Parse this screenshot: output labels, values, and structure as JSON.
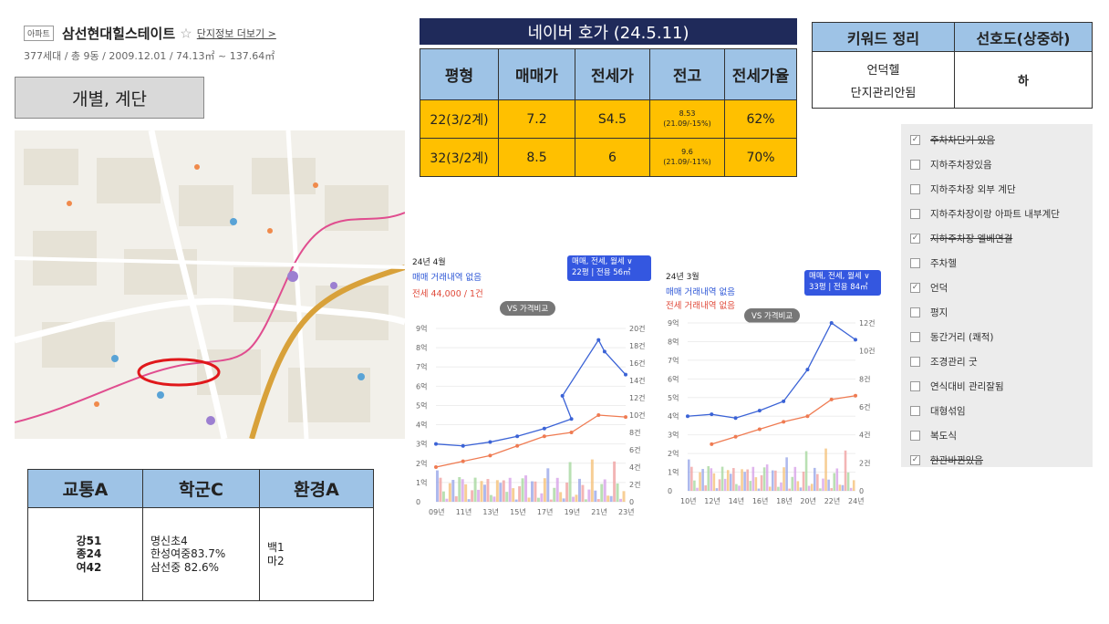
{
  "header": {
    "tag": "아파트",
    "name": "삼선현대힐스테이트",
    "star": "☆",
    "more": "단지정보 더보기 >",
    "sub": "377세대 / 총 9동 / 2009.12.01 / 74.13㎡ ~ 137.64㎡"
  },
  "category": "개별, 계단",
  "trio": {
    "headers": [
      "교통A",
      "학군C",
      "환경A"
    ],
    "col1": [
      "강51",
      "종24",
      "여42"
    ],
    "col2": [
      "명신초4",
      "한성여중83.7%",
      "삼선중 82.6%"
    ],
    "col3": [
      "백1",
      "마2"
    ]
  },
  "naver": {
    "title": "네이버 호가 (24.5.11)",
    "headers": [
      "평형",
      "매매가",
      "전세가",
      "전고",
      "전세가율"
    ],
    "rows": [
      {
        "type": "22(3/2계)",
        "sale": "7.2",
        "jeonse": "S4.5",
        "high": "8.53",
        "high_sub": "(21.09/-15%)",
        "rate": "62%"
      },
      {
        "type": "32(3/2계)",
        "sale": "8.5",
        "jeonse": "6",
        "high": "9.6",
        "high_sub": "(21.09/-11%)",
        "rate": "70%"
      }
    ]
  },
  "keyword": {
    "headers": [
      "키워드 정리",
      "선호도(상중하)"
    ],
    "items": [
      "언덕헬",
      "단지관리안됨"
    ],
    "pref": "하"
  },
  "checklist": [
    {
      "label": "주차차단기 있음",
      "checked": true,
      "struck": true
    },
    {
      "label": "지하주차장있음",
      "checked": false,
      "struck": false
    },
    {
      "label": "지하주차장 외부 계단",
      "checked": false,
      "struck": false
    },
    {
      "label": "지하주차장이랑 아파트 내부계단",
      "checked": false,
      "struck": false
    },
    {
      "label": "지하주차장 엘베연결",
      "checked": true,
      "struck": true
    },
    {
      "label": "주차헬",
      "checked": false,
      "struck": false
    },
    {
      "label": "언덕",
      "checked": true,
      "struck": false
    },
    {
      "label": "평지",
      "checked": false,
      "struck": false
    },
    {
      "label": "동간거리 (쾌적)",
      "checked": false,
      "struck": false
    },
    {
      "label": "조경관리 굿",
      "checked": false,
      "struck": false
    },
    {
      "label": "연식대비 관리잘됨",
      "checked": false,
      "struck": false
    },
    {
      "label": "대형섞임",
      "checked": false,
      "struck": false
    },
    {
      "label": "복도식",
      "checked": false,
      "struck": false
    },
    {
      "label": "한관바뀐있음",
      "checked": true,
      "struck": true
    }
  ],
  "chart_left": {
    "month": "24년 4월",
    "line1": "매매 거래내역 없음",
    "line2": "전세 44,000 / 1건",
    "btn1": "매매, 전세, 월세 ∨",
    "btn2": "22평 | 전용 56㎡",
    "vs": "VS 가격비교",
    "yleft": [
      "9억",
      "8억",
      "7억",
      "6억",
      "5억",
      "4억",
      "3억",
      "2억",
      "1억",
      "0"
    ],
    "yright": [
      "20건",
      "18건",
      "16건",
      "14건",
      "12건",
      "10건",
      "8건",
      "6건",
      "4건",
      "2건",
      "0"
    ],
    "xticks": [
      "09년",
      "11년",
      "13년",
      "15년",
      "17년",
      "19년",
      "21년",
      "23년"
    ]
  },
  "chart_right": {
    "month": "24년 3월",
    "line1": "매매 거래내역 없음",
    "line2": "전세 거래내역 없음",
    "btn1": "매매, 전세, 월세 ∨",
    "btn2": "33평 | 전용 84㎡",
    "vs": "VS 가격비교",
    "yleft": [
      "9억",
      "8억",
      "7억",
      "6억",
      "5억",
      "4억",
      "3억",
      "2억",
      "1억",
      "0"
    ],
    "yright": [
      "12건",
      "10건",
      "8건",
      "6건",
      "4건",
      "2건",
      "0"
    ],
    "xticks": [
      "10년",
      "12년",
      "14년",
      "16년",
      "18년",
      "20년",
      "22년",
      "24년"
    ]
  },
  "chart_data": [
    {
      "type": "line",
      "title": "24년 4월",
      "series": [
        {
          "name": "매매",
          "x": [
            "09년",
            "11년",
            "13년",
            "15년",
            "17년",
            "19년",
            "20년",
            "21년",
            "22년",
            "23년"
          ],
          "values": [
            3.0,
            2.9,
            3.1,
            3.4,
            3.8,
            4.3,
            5.5,
            8.4,
            7.8,
            6.6
          ]
        },
        {
          "name": "전세",
          "x": [
            "09년",
            "11년",
            "13년",
            "15년",
            "17년",
            "19년",
            "21년",
            "23년"
          ],
          "values": [
            1.8,
            2.1,
            2.4,
            2.9,
            3.4,
            3.6,
            4.5,
            4.4
          ]
        }
      ],
      "ylim": [
        0,
        9
      ]
    },
    {
      "type": "line",
      "title": "24년 3월",
      "series": [
        {
          "name": "매매",
          "x": [
            "10년",
            "12년",
            "14년",
            "16년",
            "18년",
            "20년",
            "22년",
            "24년"
          ],
          "values": [
            4.0,
            4.1,
            3.9,
            4.3,
            4.8,
            6.5,
            9.0,
            8.1
          ]
        },
        {
          "name": "전세",
          "x": [
            "12년",
            "14년",
            "16년",
            "18년",
            "20년",
            "22년",
            "24년"
          ],
          "values": [
            2.5,
            2.9,
            3.3,
            3.7,
            4.0,
            4.9,
            5.1
          ]
        }
      ],
      "ylim": [
        0,
        9
      ]
    }
  ]
}
